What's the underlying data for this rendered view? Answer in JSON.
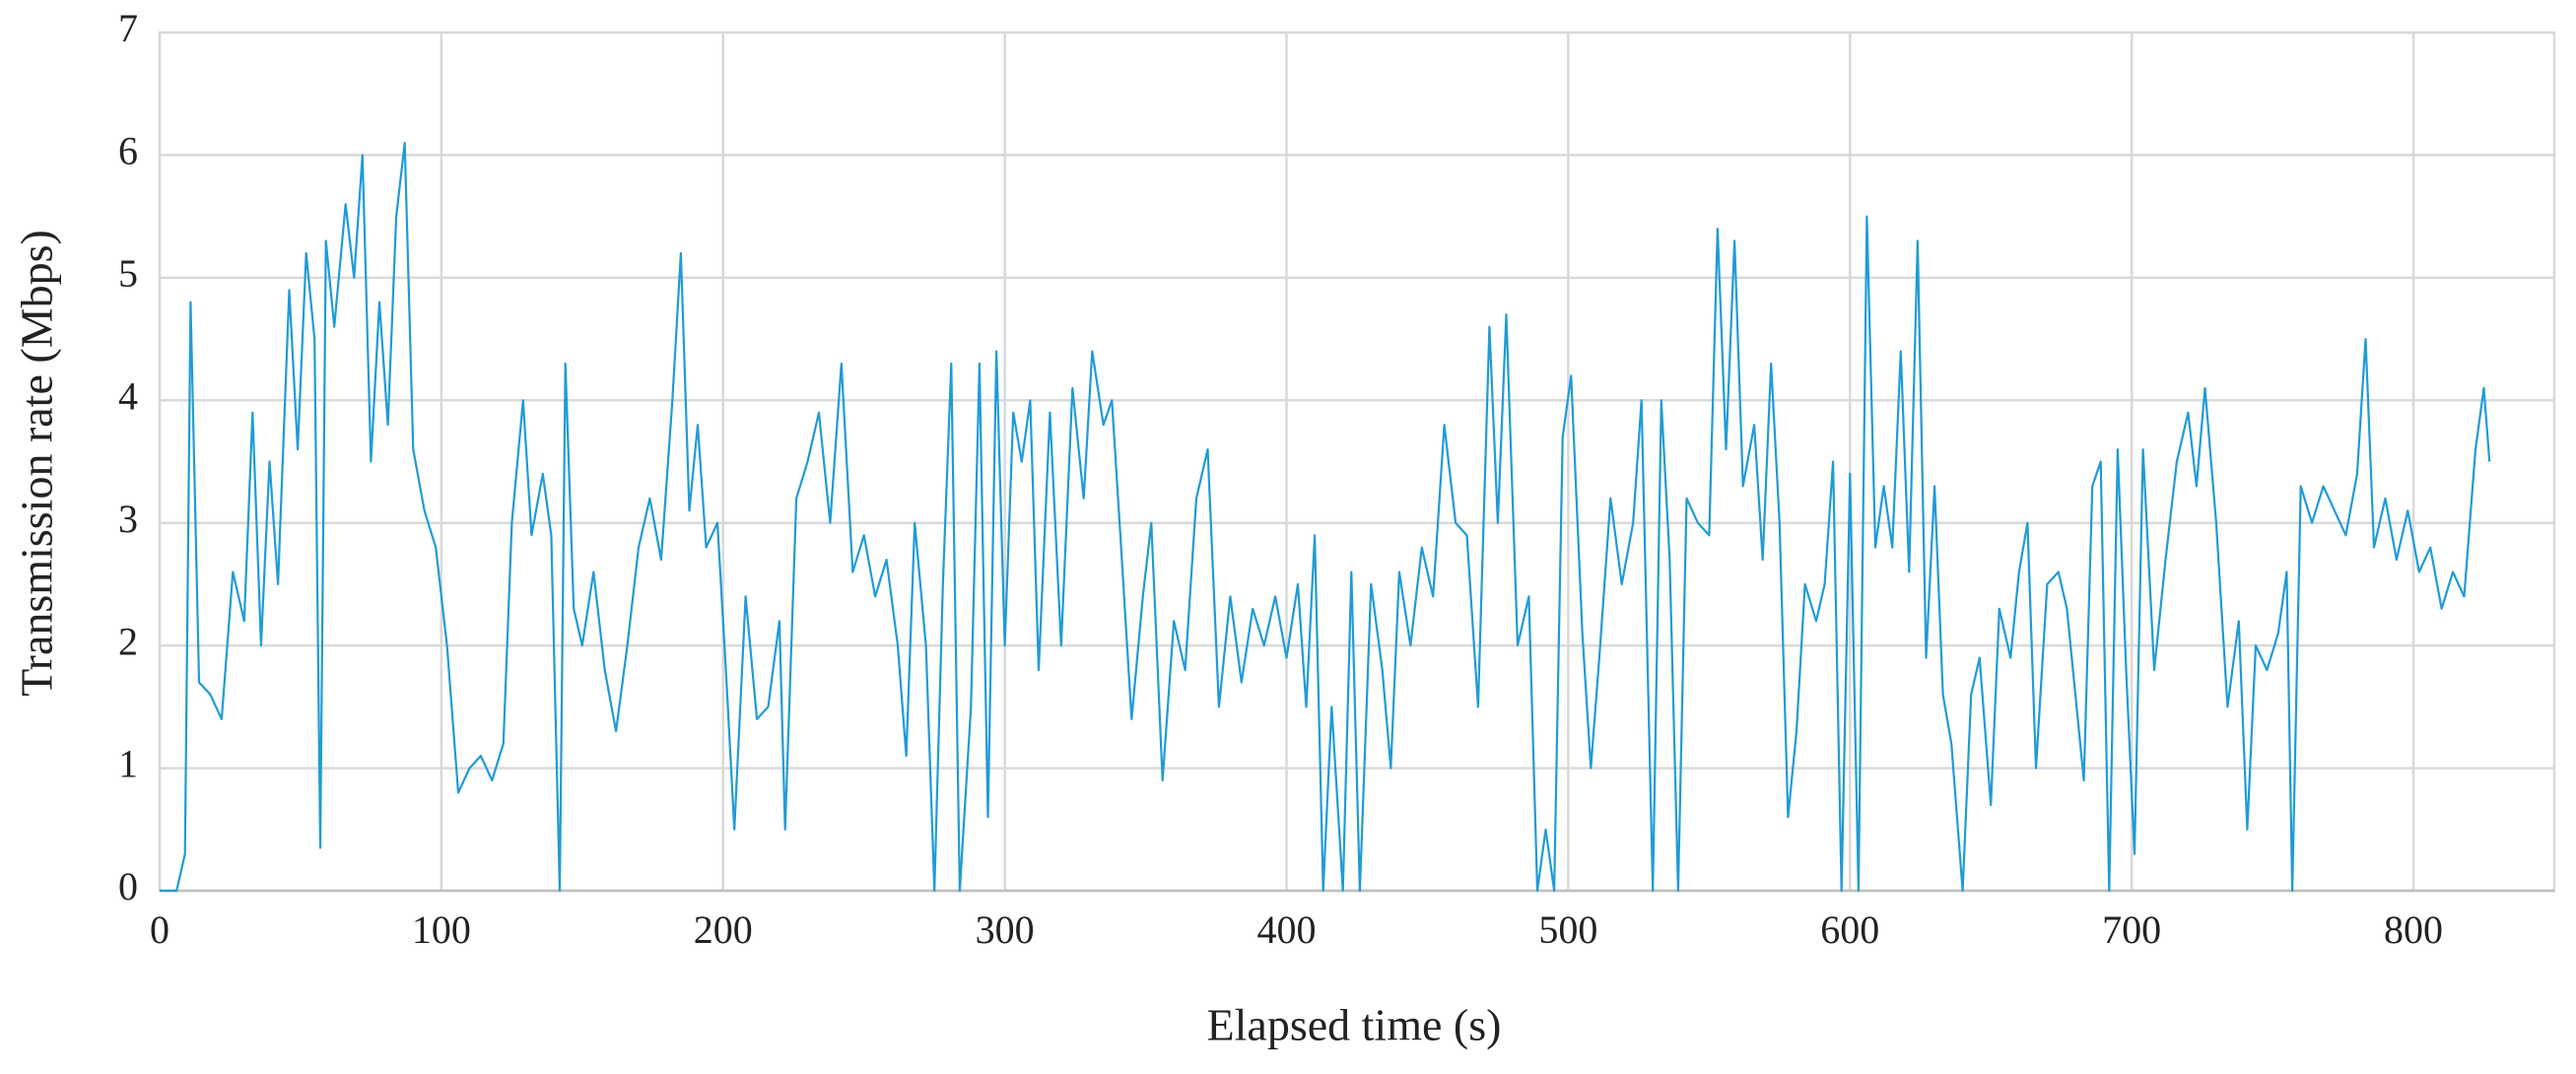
{
  "chart_data": {
    "type": "line",
    "x_label": "Elapsed time (s)",
    "y_label": "Transmission rate (Mbps)",
    "xlim": [
      0,
      850
    ],
    "xticks": [
      0,
      100,
      200,
      300,
      400,
      500,
      600,
      700,
      800
    ],
    "ylim": [
      0,
      7
    ],
    "yticks": [
      0,
      1,
      2,
      3,
      4,
      5,
      6,
      7
    ],
    "grid": true,
    "x": [
      0,
      6,
      9,
      11,
      14,
      18,
      22,
      26,
      30,
      33,
      36,
      39,
      42,
      46,
      49,
      52,
      55,
      57,
      59,
      62,
      66,
      69,
      72,
      75,
      78,
      81,
      84,
      87,
      90,
      94,
      98,
      102,
      106,
      110,
      114,
      118,
      122,
      125,
      129,
      132,
      136,
      139,
      142,
      144,
      147,
      150,
      154,
      158,
      162,
      166,
      170,
      174,
      178,
      182,
      185,
      188,
      191,
      194,
      198,
      201,
      204,
      208,
      212,
      216,
      220,
      222,
      226,
      230,
      234,
      238,
      242,
      246,
      250,
      254,
      258,
      262,
      265,
      268,
      272,
      275,
      278,
      281,
      284,
      288,
      291,
      294,
      297,
      300,
      303,
      306,
      309,
      312,
      316,
      320,
      324,
      328,
      331,
      335,
      338,
      341,
      345,
      349,
      352,
      356,
      360,
      364,
      368,
      372,
      376,
      380,
      384,
      388,
      392,
      396,
      400,
      404,
      407,
      410,
      413,
      416,
      420,
      423,
      426,
      430,
      434,
      437,
      440,
      444,
      448,
      452,
      456,
      460,
      464,
      468,
      472,
      475,
      478,
      482,
      486,
      489,
      492,
      495,
      498,
      501,
      505,
      508,
      511,
      515,
      519,
      523,
      526,
      530,
      533,
      536,
      539,
      542,
      546,
      550,
      553,
      556,
      559,
      562,
      566,
      569,
      572,
      575,
      578,
      581,
      584,
      588,
      591,
      594,
      597,
      600,
      603,
      606,
      609,
      612,
      615,
      618,
      621,
      624,
      627,
      630,
      633,
      636,
      640,
      643,
      646,
      650,
      653,
      657,
      660,
      663,
      666,
      670,
      674,
      677,
      680,
      683,
      686,
      689,
      692,
      695,
      698,
      701,
      704,
      708,
      712,
      716,
      720,
      723,
      726,
      730,
      734,
      738,
      741,
      744,
      748,
      752,
      755,
      757,
      760,
      764,
      768,
      772,
      776,
      780,
      783,
      786,
      790,
      794,
      798,
      802,
      806,
      810,
      814,
      818,
      822,
      825,
      827
    ],
    "series": [
      {
        "name": "Transmission rate",
        "color": "#1f9bd7",
        "values": [
          0,
          0,
          0.3,
          4.8,
          1.7,
          1.6,
          1.4,
          2.6,
          2.2,
          3.9,
          2.0,
          3.5,
          2.5,
          4.9,
          3.6,
          5.2,
          4.5,
          0.35,
          5.3,
          4.6,
          5.6,
          5.0,
          6.0,
          3.5,
          4.8,
          3.8,
          5.5,
          6.1,
          3.6,
          3.1,
          2.8,
          2.0,
          0.8,
          1.0,
          1.1,
          0.9,
          1.2,
          3.0,
          4.0,
          2.9,
          3.4,
          2.9,
          0,
          4.3,
          2.3,
          2.0,
          2.6,
          1.8,
          1.3,
          2.0,
          2.8,
          3.2,
          2.7,
          4.0,
          5.2,
          3.1,
          3.8,
          2.8,
          3.0,
          1.8,
          0.5,
          2.4,
          1.4,
          1.5,
          2.2,
          0.5,
          3.2,
          3.5,
          3.9,
          3.0,
          4.3,
          2.6,
          2.9,
          2.4,
          2.7,
          2.0,
          1.1,
          3.0,
          2.0,
          0,
          2.5,
          4.3,
          0,
          1.5,
          4.3,
          0.6,
          4.4,
          2.0,
          3.9,
          3.5,
          4.0,
          1.8,
          3.9,
          2.0,
          4.1,
          3.2,
          4.4,
          3.8,
          4.0,
          2.9,
          1.4,
          2.4,
          3.0,
          0.9,
          2.2,
          1.8,
          3.2,
          3.6,
          1.5,
          2.4,
          1.7,
          2.3,
          2.0,
          2.4,
          1.9,
          2.5,
          1.5,
          2.9,
          0,
          1.5,
          0,
          2.6,
          0,
          2.5,
          1.8,
          1.0,
          2.6,
          2.0,
          2.8,
          2.4,
          3.8,
          3.0,
          2.9,
          1.5,
          4.6,
          3.0,
          4.7,
          2.0,
          2.4,
          0,
          0.5,
          0,
          3.7,
          4.2,
          2.1,
          1.0,
          1.9,
          3.2,
          2.5,
          3.0,
          4.0,
          0,
          4.0,
          2.7,
          0,
          3.2,
          3.0,
          2.9,
          5.4,
          3.6,
          5.3,
          3.3,
          3.8,
          2.7,
          4.3,
          3.0,
          0.6,
          1.3,
          2.5,
          2.2,
          2.5,
          3.5,
          0,
          3.4,
          0,
          5.5,
          2.8,
          3.3,
          2.8,
          4.4,
          2.6,
          5.3,
          1.9,
          3.3,
          1.6,
          1.2,
          0,
          1.6,
          1.9,
          0.7,
          2.3,
          1.9,
          2.6,
          3.0,
          1.0,
          2.5,
          2.6,
          2.3,
          1.6,
          0.9,
          3.3,
          3.5,
          0,
          3.6,
          1.8,
          0.3,
          3.6,
          1.8,
          2.7,
          3.5,
          3.9,
          3.3,
          4.1,
          3.0,
          1.5,
          2.2,
          0.5,
          2.0,
          1.8,
          2.1,
          2.6,
          0,
          3.3,
          3.0,
          3.3,
          3.1,
          2.9,
          3.4,
          4.5,
          2.8,
          3.2,
          2.7,
          3.1,
          2.6,
          2.8,
          2.3,
          2.6,
          2.4,
          3.6,
          4.1,
          3.5
        ]
      }
    ]
  }
}
